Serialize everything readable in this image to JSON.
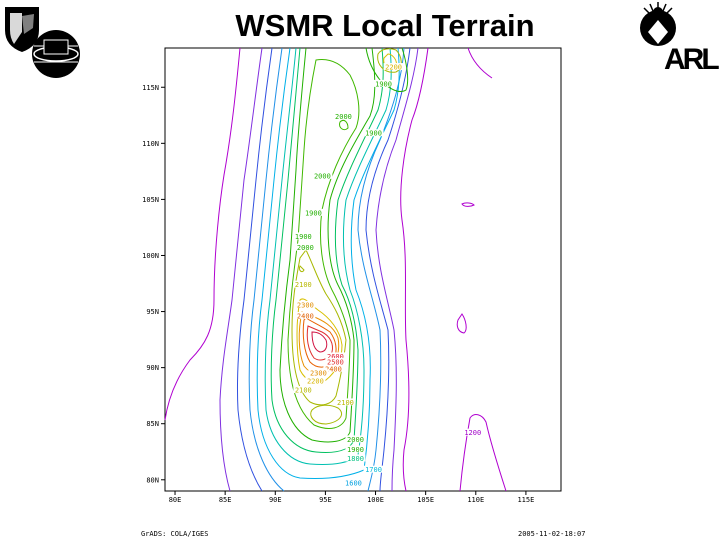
{
  "title": "WSMR Local Terrain",
  "logos": {
    "left_top": "shield-emblem",
    "left_bottom": "globe-emblem",
    "right_top": "compass-globe-emblem",
    "right_bottom": "ARL"
  },
  "footer": {
    "left": "GrADS: COLA/IGES",
    "right": "2005-11-02-18:07"
  },
  "map": {
    "x_axis": {
      "ticks": [
        "80E",
        "85E",
        "90E",
        "95E",
        "100E",
        "105E",
        "110E",
        "115E"
      ],
      "range": [
        79,
        118.5
      ]
    },
    "y_axis": {
      "ticks": [
        "80N",
        "85N",
        "90N",
        "95N",
        "100N",
        "105N",
        "110N",
        "115N"
      ],
      "range": [
        79,
        118.5
      ]
    },
    "contour_labels": [
      {
        "text": "2200",
        "x": 101.8,
        "y": 116.8,
        "color": "#d8b400"
      },
      {
        "text": "1900",
        "x": 100.8,
        "y": 115.3,
        "color": "#22b000"
      },
      {
        "text": "2000",
        "x": 96.8,
        "y": 112.4,
        "color": "#22b000"
      },
      {
        "text": "1900",
        "x": 99.8,
        "y": 110.9,
        "color": "#22b000"
      },
      {
        "text": "2000",
        "x": 94.7,
        "y": 107.1,
        "color": "#22b000"
      },
      {
        "text": "1900",
        "x": 93.8,
        "y": 103.8,
        "color": "#22b000"
      },
      {
        "text": "1900",
        "x": 92.8,
        "y": 101.7,
        "color": "#22b000"
      },
      {
        "text": "2000",
        "x": 93.0,
        "y": 100.7,
        "color": "#22b000"
      },
      {
        "text": "2100",
        "x": 92.8,
        "y": 97.4,
        "color": "#b8b800"
      },
      {
        "text": "2300",
        "x": 93.0,
        "y": 95.6,
        "color": "#e08c00"
      },
      {
        "text": "2400",
        "x": 93.0,
        "y": 94.6,
        "color": "#e06000"
      },
      {
        "text": "2600",
        "x": 96.0,
        "y": 91.0,
        "color": "#e01830"
      },
      {
        "text": "2500",
        "x": 96.0,
        "y": 90.5,
        "color": "#e03030"
      },
      {
        "text": "2400",
        "x": 95.8,
        "y": 89.9,
        "color": "#e06000"
      },
      {
        "text": "2300",
        "x": 94.3,
        "y": 89.5,
        "color": "#e08c00"
      },
      {
        "text": "2200",
        "x": 94.0,
        "y": 88.8,
        "color": "#d8b400"
      },
      {
        "text": "2100",
        "x": 92.8,
        "y": 88.0,
        "color": "#b8b800"
      },
      {
        "text": "2100",
        "x": 97.0,
        "y": 86.9,
        "color": "#b8b800"
      },
      {
        "text": "2000",
        "x": 98.0,
        "y": 83.6,
        "color": "#22b000"
      },
      {
        "text": "1900",
        "x": 98.0,
        "y": 82.7,
        "color": "#22b000"
      },
      {
        "text": "1800",
        "x": 98.0,
        "y": 81.9,
        "color": "#00c080"
      },
      {
        "text": "1700",
        "x": 99.8,
        "y": 80.9,
        "color": "#00b8d8"
      },
      {
        "text": "1600",
        "x": 97.8,
        "y": 79.7,
        "color": "#00a0e0"
      },
      {
        "text": "1200",
        "x": 109.7,
        "y": 84.2,
        "color": "#a000c8"
      }
    ]
  }
}
